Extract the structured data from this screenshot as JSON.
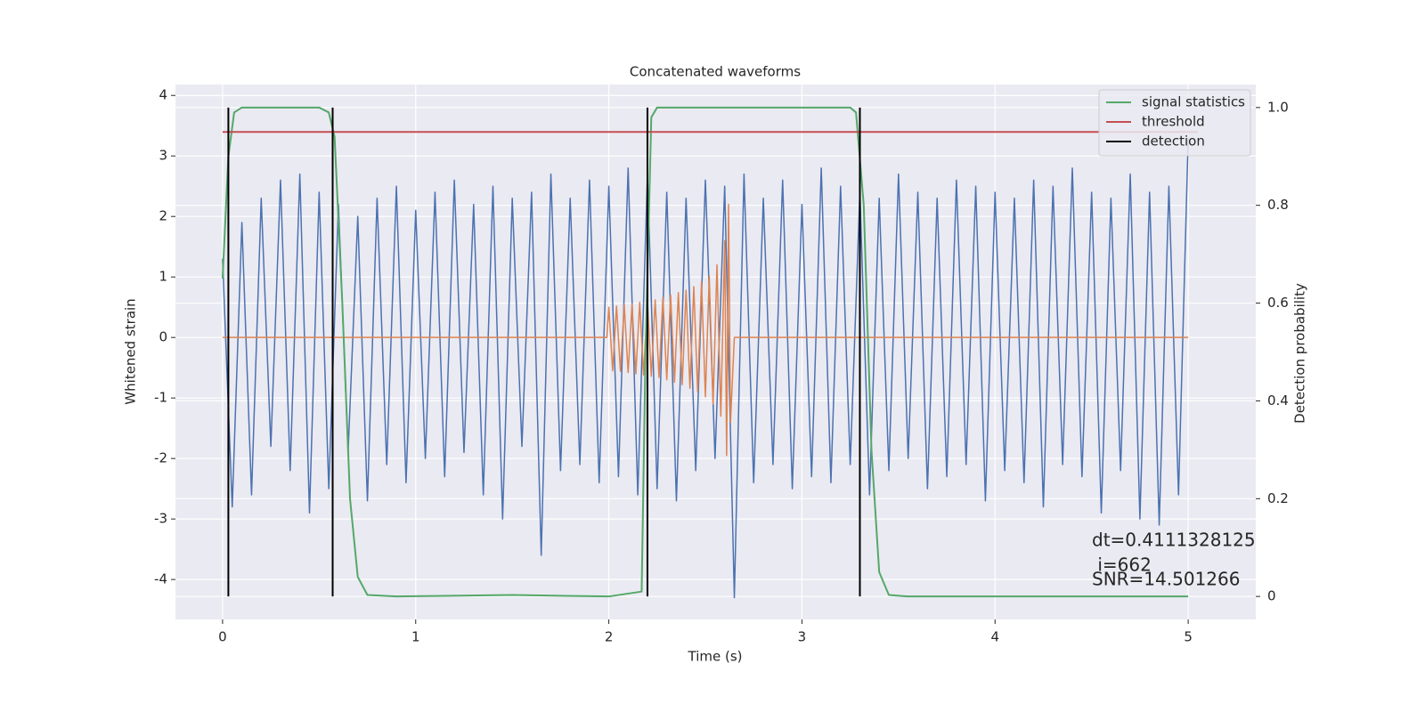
{
  "chart_data": {
    "type": "line",
    "title": "Concatenated waveforms",
    "xlabel": "Time (s)",
    "ylabel": "Whitened strain",
    "y2label": "Detection probability",
    "xlim": [
      -0.244,
      5.35
    ],
    "xticks": [
      0,
      1,
      2,
      3,
      4,
      5
    ],
    "ylim": [
      -4.66,
      4.18
    ],
    "yticks": [
      -4,
      -3,
      -2,
      -1,
      0,
      1,
      2,
      3,
      4
    ],
    "y2lim": [
      -0.047,
      1.047
    ],
    "y2ticks": [
      0.0,
      0.2,
      0.4,
      0.6,
      0.8,
      {
        "value": 1,
        "label": "1.0"
      }
    ],
    "grid": true,
    "legend": "upper right",
    "series": [
      {
        "color": "#4c72b0",
        "x": [
          0,
          0.05,
          0.1,
          0.15,
          0.2,
          0.25,
          0.3,
          0.35,
          0.4,
          0.45,
          0.5,
          0.55,
          0.6,
          0.65,
          0.7,
          0.75,
          0.8,
          0.85,
          0.9,
          0.95,
          1,
          1.05,
          1.1,
          1.15,
          1.2,
          1.25,
          1.3,
          1.35,
          1.4,
          1.45,
          1.5,
          1.55,
          1.6,
          1.65,
          1.7,
          1.75,
          1.8,
          1.85,
          1.9,
          1.95,
          2,
          2.05,
          2.1,
          2.15,
          2.2,
          2.25,
          2.3,
          2.35,
          2.4,
          2.45,
          2.5,
          2.55,
          2.6,
          2.65,
          2.7,
          2.75,
          2.8,
          2.85,
          2.9,
          2.95,
          3,
          3.05,
          3.1,
          3.15,
          3.2,
          3.25,
          3.3,
          3.35,
          3.4,
          3.45,
          3.5,
          3.55,
          3.6,
          3.65,
          3.7,
          3.75,
          3.8,
          3.85,
          3.9,
          3.95,
          4,
          4.05,
          4.1,
          4.15,
          4.2,
          4.25,
          4.3,
          4.35,
          4.4,
          4.45,
          4.5,
          4.55,
          4.6,
          4.65,
          4.7,
          4.75,
          4.8,
          4.85,
          4.9,
          4.95,
          5
        ],
        "values": [
          1.3,
          -2.8,
          1.9,
          -2.6,
          2.3,
          -1.8,
          2.6,
          -2.2,
          2.7,
          -2.9,
          2.4,
          -2.5,
          2.2,
          -1.9,
          2.0,
          -2.7,
          2.3,
          -2.1,
          2.5,
          -2.4,
          2.1,
          -2.0,
          2.4,
          -2.3,
          2.6,
          -1.9,
          2.2,
          -2.6,
          2.5,
          -3.0,
          2.3,
          -1.8,
          2.4,
          -3.6,
          2.7,
          -2.2,
          2.3,
          -2.1,
          2.6,
          -2.4,
          2.5,
          -2.3,
          2.8,
          -2.6,
          2.7,
          -2.5,
          2.4,
          -2.7,
          2.3,
          -2.2,
          2.6,
          -2.0,
          2.5,
          -4.3,
          2.7,
          -2.4,
          2.3,
          -2.1,
          2.6,
          -2.5,
          2.2,
          -2.3,
          2.8,
          -2.4,
          2.5,
          -2.1,
          2.4,
          -2.6,
          2.3,
          -2.2,
          2.7,
          -2.0,
          2.4,
          -2.5,
          2.3,
          -2.3,
          2.6,
          -2.1,
          2.5,
          -2.7,
          2.4,
          -2.2,
          2.3,
          -2.4,
          2.6,
          -2.8,
          2.5,
          -2.1,
          2.8,
          -2.3,
          2.4,
          -2.9,
          2.3,
          -2.2,
          2.7,
          -3.0,
          2.4,
          -3.1,
          2.5,
          -2.6,
          3.3
        ]
      },
      {
        "color": "#dd8452",
        "x": [
          0,
          1.99,
          2.0,
          2.02,
          2.04,
          2.06,
          2.08,
          2.1,
          2.12,
          2.14,
          2.16,
          2.18,
          2.2,
          2.22,
          2.24,
          2.26,
          2.28,
          2.3,
          2.32,
          2.34,
          2.36,
          2.38,
          2.4,
          2.42,
          2.44,
          2.46,
          2.48,
          2.5,
          2.52,
          2.54,
          2.56,
          2.58,
          2.6,
          2.61,
          2.62,
          2.63,
          2.65,
          5
        ],
        "values": [
          0,
          0,
          0.5,
          -0.55,
          0.52,
          -0.56,
          0.54,
          -0.58,
          0.55,
          -0.6,
          0.58,
          -0.62,
          0.6,
          -0.64,
          0.62,
          -0.66,
          0.66,
          -0.7,
          0.7,
          -0.74,
          0.74,
          -0.78,
          0.78,
          -0.84,
          0.84,
          -0.9,
          0.92,
          -0.98,
          1.02,
          -1.1,
          1.2,
          -1.3,
          1.6,
          -1.95,
          2.2,
          -1.4,
          0,
          0
        ]
      },
      {
        "name": "signal statistics",
        "color": "#55a868",
        "axis": "y2",
        "x": [
          0,
          0.03,
          0.06,
          0.1,
          0.15,
          0.5,
          0.55,
          0.58,
          0.62,
          0.66,
          0.7,
          0.75,
          0.9,
          1.5,
          2.0,
          2.17,
          2.19,
          2.22,
          2.25,
          3.25,
          3.28,
          3.32,
          3.36,
          3.4,
          3.45,
          3.55,
          4.5,
          5
        ],
        "values": [
          0.65,
          0.9,
          0.99,
          1.0,
          1.0,
          1.0,
          0.99,
          0.94,
          0.6,
          0.2,
          0.04,
          0.003,
          0.0,
          0.003,
          0.0,
          0.01,
          0.5,
          0.98,
          1.0,
          1.0,
          0.99,
          0.8,
          0.3,
          0.05,
          0.003,
          0.0,
          0.0,
          0.0
        ]
      },
      {
        "name": "threshold",
        "color": "#c44e52",
        "axis": "y2",
        "x": [
          0,
          5.05
        ],
        "values": [
          0.95,
          0.95
        ]
      },
      {
        "name": "detection",
        "color": "#000000",
        "axis": "y2",
        "x": [
          0.03,
          0.57,
          2.2,
          3.3
        ]
      }
    ],
    "annotations": [
      "dt=0.4111328125",
      " i=662",
      "SNR=14.501266"
    ]
  }
}
